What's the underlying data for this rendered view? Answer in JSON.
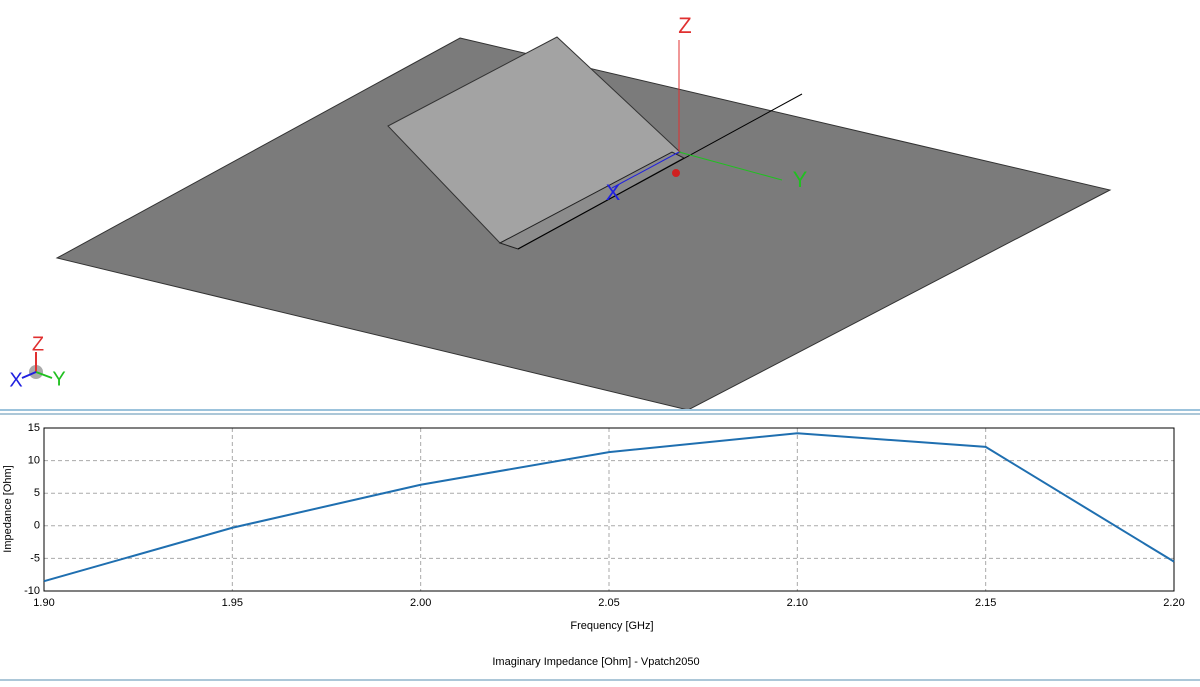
{
  "viewport": {
    "axes": {
      "z": "Z",
      "y": "Y",
      "x": "X"
    },
    "triad": {
      "z": "Z",
      "y": "Y",
      "x": "X"
    }
  },
  "chart_data": {
    "type": "line",
    "title": "Imaginary Impedance [Ohm] - Vpatch2050",
    "x_label": "Frequency [GHz]",
    "y_label": "Impedance [Ohm]",
    "x": [
      1.9,
      1.95,
      2.0,
      2.05,
      2.1,
      2.15,
      2.2
    ],
    "series": [
      {
        "color": "#1f6fb0",
        "values": [
          -8.5,
          -0.3,
          6.3,
          11.3,
          14.2,
          12.1,
          -5.5
        ]
      }
    ],
    "xlim": [
      1.9,
      2.2
    ],
    "xticks": [
      {
        "value": 1.9,
        "label": "1.90"
      },
      1.95,
      {
        "value": 2.0,
        "label": "2.00"
      },
      2.05,
      {
        "value": 2.1,
        "label": "2.10"
      },
      2.15,
      {
        "value": 2.2,
        "label": "2.20"
      }
    ],
    "ylim": [
      -10,
      15
    ],
    "yticks": [
      -10,
      -5,
      0,
      5,
      10,
      15
    ],
    "grid": true
  }
}
